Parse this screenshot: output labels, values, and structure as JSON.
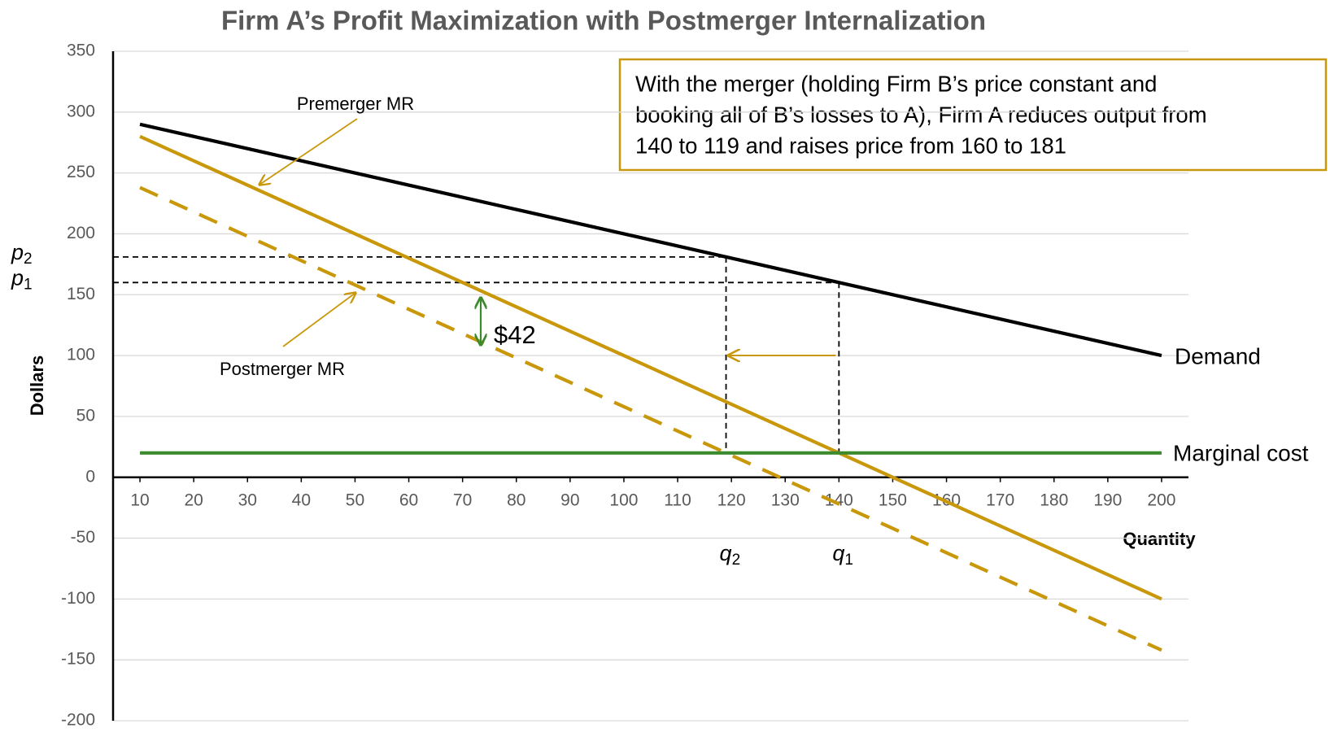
{
  "chart_data": {
    "type": "line",
    "title": "Firm A’s Profit Maximization with Postmerger Internalization",
    "x_label": "Quantity",
    "y_label": "Dollars",
    "x": [
      10,
      200
    ],
    "series": [
      {
        "name": "Demand",
        "color": "#000000",
        "dashed": false,
        "values": [
          290,
          100
        ]
      },
      {
        "name": "Premerger MR",
        "color": "#c9980a",
        "dashed": false,
        "values": [
          280,
          -100
        ]
      },
      {
        "name": "Postmerger MR",
        "color": "#c9980a",
        "dashed": true,
        "values": [
          238,
          -142
        ]
      },
      {
        "name": "Marginal cost",
        "color": "#3c8a2e",
        "dashed": false,
        "values": [
          20,
          20
        ]
      }
    ],
    "xlim": [
      5,
      205
    ],
    "xticks": [
      10,
      20,
      30,
      40,
      50,
      60,
      70,
      80,
      90,
      100,
      110,
      120,
      130,
      140,
      150,
      160,
      170,
      180,
      190,
      200
    ],
    "ylim": [
      -200,
      350
    ],
    "yticks": [
      -200,
      -150,
      -100,
      -50,
      0,
      50,
      100,
      150,
      200,
      250,
      300,
      350
    ],
    "grid": true,
    "prices": [
      {
        "label": "p",
        "subscript": "2",
        "value": 181
      },
      {
        "label": "p",
        "subscript": "1",
        "value": 160
      }
    ],
    "quantities": [
      {
        "label": "q",
        "subscript": "2",
        "value": 119
      },
      {
        "label": "q",
        "subscript": "1",
        "value": 140
      }
    ],
    "gap_label": "$42",
    "annotation_lines": [
      "With the merger (holding Firm B’s price constant and",
      "booking all of B’s losses to A), Firm A reduces output from",
      "140 to 119 and raises price from 160 to 181"
    ]
  }
}
